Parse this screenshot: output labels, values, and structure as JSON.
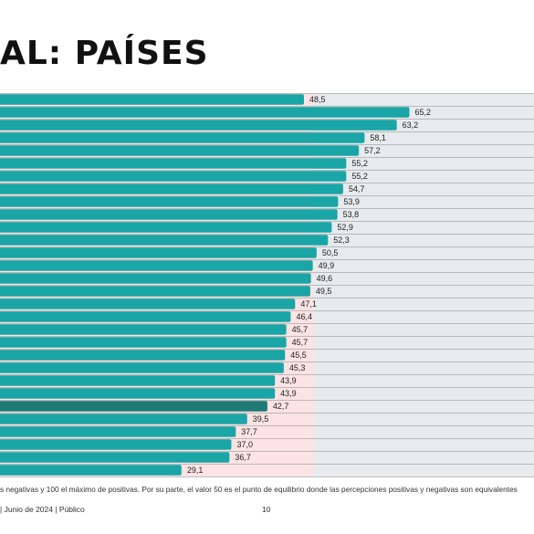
{
  "title": "AL: PAÍSES",
  "note": "s negativas y 100 el máximo de positivas. Por su parte, el valor 50 es el punto de equilibrio donde las percepciones positivas y negativas son equivalentes",
  "footer": {
    "left": "| Junio de 2024 | Público",
    "page": "10"
  },
  "colors": {
    "bar": "#1aa5a6",
    "highlight": "#1d7a74",
    "positive_zone": "#e7ebee",
    "negative_zone": "#fde3e3",
    "grid": "#a9a9a9"
  },
  "chart_data": {
    "type": "bar",
    "orientation": "horizontal",
    "categories_visible": false,
    "reference_value": 50,
    "values": [
      48.5,
      65.2,
      63.2,
      58.1,
      57.2,
      55.2,
      55.2,
      54.7,
      53.9,
      53.8,
      52.9,
      52.3,
      50.5,
      49.9,
      49.6,
      49.5,
      47.1,
      46.4,
      45.7,
      45.7,
      45.5,
      45.3,
      43.9,
      43.9,
      42.7,
      39.5,
      37.7,
      37.0,
      36.7,
      29.1
    ],
    "labels": [
      "48,5",
      "65,2",
      "63,2",
      "58,1",
      "57,2",
      "55,2",
      "55,2",
      "54,7",
      "53,9",
      "53,8",
      "52,9",
      "52,3",
      "50,5",
      "49,9",
      "49,6",
      "49,5",
      "47,1",
      "46,4",
      "45,7",
      "45,7",
      "45,5",
      "45,3",
      "43,9",
      "43,9",
      "42,7",
      "39,5",
      "37,7",
      "37,0",
      "36,7",
      "29,1"
    ],
    "highlight_index": 24
  }
}
